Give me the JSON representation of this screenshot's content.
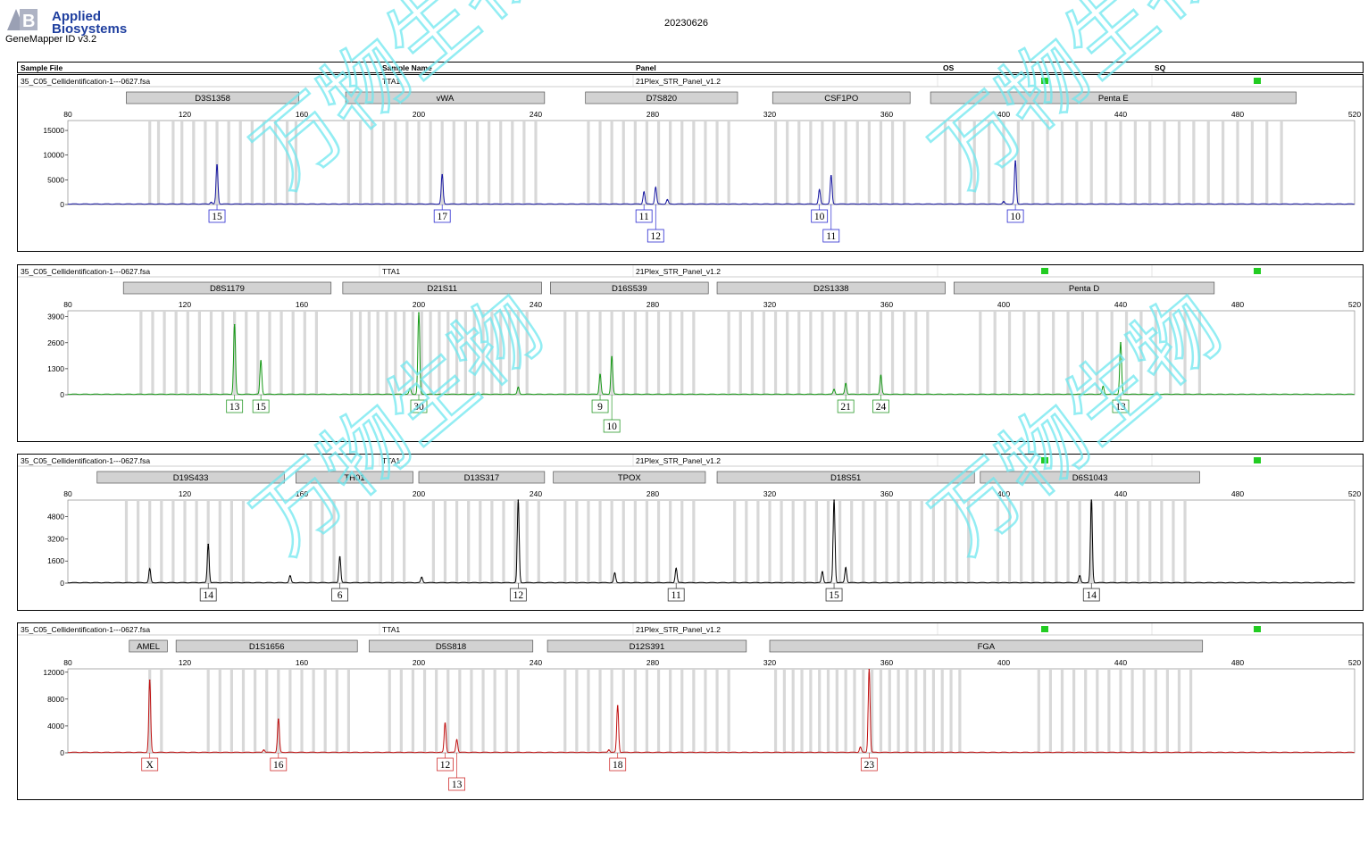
{
  "header": {
    "brand_line1": "Applied",
    "brand_line2": "Biosystems",
    "software": "GeneMapper ID v3.2",
    "date": "20230626"
  },
  "table": {
    "columns": [
      "Sample File",
      "Sample Name",
      "Panel",
      "OS",
      "SQ"
    ]
  },
  "watermark": "万物生物",
  "chart_data": [
    {
      "type": "line",
      "sample_file": "35_C05_Cellidentification-1---0627.fsa",
      "sample_name": "TTA1",
      "panel": "21Plex_STR_Panel_v1.2",
      "color": "#1515a0",
      "label_color": "#2a2ad0",
      "x_ticks": [
        80,
        120,
        160,
        200,
        240,
        280,
        320,
        360,
        400,
        440,
        480,
        520
      ],
      "xlim": [
        80,
        520
      ],
      "y_ticks": [
        0,
        5000,
        10000,
        15000
      ],
      "ylim": [
        0,
        17000
      ],
      "markers": [
        {
          "name": "D3S1358",
          "start": 100,
          "end": 159
        },
        {
          "name": "vWA",
          "start": 175,
          "end": 243
        },
        {
          "name": "D7S820",
          "start": 257,
          "end": 309
        },
        {
          "name": "CSF1PO",
          "start": 321,
          "end": 368
        },
        {
          "name": "Penta E",
          "start": 375,
          "end": 500
        }
      ],
      "peaks": [
        {
          "x": 131,
          "y": 8000
        },
        {
          "x": 208,
          "y": 6000
        },
        {
          "x": 277,
          "y": 2500
        },
        {
          "x": 281,
          "y": 3400
        },
        {
          "x": 285,
          "y": 900
        },
        {
          "x": 337,
          "y": 2900
        },
        {
          "x": 341,
          "y": 5800
        },
        {
          "x": 404,
          "y": 8800
        },
        {
          "x": 129,
          "y": 400
        },
        {
          "x": 400,
          "y": 500
        }
      ],
      "bins": [
        108,
        111,
        116,
        119,
        123,
        127,
        131,
        135,
        139,
        143,
        147,
        151,
        155,
        158,
        176,
        180,
        184,
        188,
        192,
        196,
        200,
        204,
        208,
        212,
        216,
        220,
        224,
        228,
        232,
        236,
        240,
        258,
        262,
        266,
        270,
        274,
        278,
        282,
        286,
        290,
        294,
        298,
        302,
        306,
        322,
        326,
        330,
        334,
        338,
        342,
        346,
        350,
        354,
        358,
        362,
        366,
        380,
        385,
        390,
        395,
        400,
        405,
        410,
        415,
        420,
        425,
        430,
        435,
        440,
        445,
        450,
        455,
        460,
        465,
        470,
        475,
        480,
        485,
        490,
        495
      ],
      "allele_calls": [
        {
          "x": 131,
          "label": "15",
          "row": 0
        },
        {
          "x": 208,
          "label": "17",
          "row": 0
        },
        {
          "x": 277,
          "label": "11",
          "row": 0
        },
        {
          "x": 281,
          "label": "12",
          "row": 1
        },
        {
          "x": 337,
          "label": "10",
          "row": 0
        },
        {
          "x": 341,
          "label": "11",
          "row": 1
        },
        {
          "x": 404,
          "label": "10",
          "row": 0
        }
      ]
    },
    {
      "type": "line",
      "sample_file": "35_C05_Cellidentification-1---0627.fsa",
      "sample_name": "TTA1",
      "panel": "21Plex_STR_Panel_v1.2",
      "color": "#179a17",
      "label_color": "#2a9a2a",
      "x_ticks": [
        80,
        120,
        160,
        200,
        240,
        280,
        320,
        360,
        400,
        440,
        480,
        520
      ],
      "xlim": [
        80,
        520
      ],
      "y_ticks": [
        0,
        1300,
        2600,
        3900
      ],
      "ylim": [
        0,
        4200
      ],
      "markers": [
        {
          "name": "D8S1179",
          "start": 99,
          "end": 170
        },
        {
          "name": "D21S11",
          "start": 174,
          "end": 242
        },
        {
          "name": "D16S539",
          "start": 245,
          "end": 299
        },
        {
          "name": "D2S1338",
          "start": 302,
          "end": 380
        },
        {
          "name": "Penta D",
          "start": 383,
          "end": 472
        }
      ],
      "peaks": [
        {
          "x": 137,
          "y": 3500
        },
        {
          "x": 146,
          "y": 1700
        },
        {
          "x": 200,
          "y": 4100
        },
        {
          "x": 262,
          "y": 1000
        },
        {
          "x": 266,
          "y": 1900
        },
        {
          "x": 346,
          "y": 550
        },
        {
          "x": 358,
          "y": 950
        },
        {
          "x": 440,
          "y": 2600
        },
        {
          "x": 434,
          "y": 400
        },
        {
          "x": 234,
          "y": 350
        },
        {
          "x": 197,
          "y": 300
        },
        {
          "x": 342,
          "y": 250
        }
      ],
      "bins": [
        105,
        109,
        113,
        117,
        121,
        125,
        129,
        133,
        137,
        141,
        145,
        149,
        153,
        157,
        161,
        165,
        177,
        180,
        183,
        186,
        189,
        192,
        195,
        198,
        201,
        204,
        207,
        210,
        213,
        216,
        219,
        222,
        225,
        228,
        231,
        234,
        237,
        250,
        254,
        258,
        262,
        266,
        270,
        274,
        278,
        282,
        286,
        290,
        294,
        306,
        310,
        314,
        318,
        322,
        326,
        330,
        334,
        338,
        342,
        346,
        350,
        354,
        358,
        362,
        366,
        370,
        374,
        392,
        397,
        402,
        407,
        412,
        417,
        422,
        427,
        432,
        437,
        442,
        447,
        452,
        457,
        462,
        467
      ],
      "allele_calls": [
        {
          "x": 137,
          "label": "13",
          "row": 0
        },
        {
          "x": 146,
          "label": "15",
          "row": 0
        },
        {
          "x": 200,
          "label": "30",
          "row": 0
        },
        {
          "x": 262,
          "label": "9",
          "row": 0
        },
        {
          "x": 266,
          "label": "10",
          "row": 1
        },
        {
          "x": 346,
          "label": "21",
          "row": 0
        },
        {
          "x": 358,
          "label": "24",
          "row": 0
        },
        {
          "x": 440,
          "label": "13",
          "row": 0
        }
      ]
    },
    {
      "type": "line",
      "sample_file": "35_C05_Cellidentification-1---0627.fsa",
      "sample_name": "TTA1",
      "panel": "21Plex_STR_Panel_v1.2",
      "color": "#000000",
      "label_color": "#333333",
      "x_ticks": [
        80,
        120,
        160,
        200,
        240,
        280,
        320,
        360,
        400,
        440,
        480,
        520
      ],
      "xlim": [
        80,
        520
      ],
      "y_ticks": [
        0,
        1600,
        3200,
        4800
      ],
      "ylim": [
        0,
        6000
      ],
      "markers": [
        {
          "name": "D19S433",
          "start": 90,
          "end": 154
        },
        {
          "name": "TH01",
          "start": 158,
          "end": 198
        },
        {
          "name": "D13S317",
          "start": 200,
          "end": 243
        },
        {
          "name": "TPOX",
          "start": 246,
          "end": 298
        },
        {
          "name": "D18S51",
          "start": 302,
          "end": 390
        },
        {
          "name": "D6S1043",
          "start": 392,
          "end": 467
        }
      ],
      "peaks": [
        {
          "x": 108,
          "y": 1000
        },
        {
          "x": 128,
          "y": 2800
        },
        {
          "x": 156,
          "y": 500
        },
        {
          "x": 173,
          "y": 1900
        },
        {
          "x": 201,
          "y": 400
        },
        {
          "x": 234,
          "y": 6000
        },
        {
          "x": 267,
          "y": 700
        },
        {
          "x": 288,
          "y": 1050
        },
        {
          "x": 338,
          "y": 800
        },
        {
          "x": 342,
          "y": 6000
        },
        {
          "x": 346,
          "y": 1100
        },
        {
          "x": 426,
          "y": 500
        },
        {
          "x": 430,
          "y": 6000
        }
      ],
      "bins": [
        100,
        104,
        108,
        112,
        116,
        120,
        124,
        128,
        132,
        136,
        140,
        163,
        167,
        171,
        175,
        179,
        183,
        187,
        191,
        195,
        205,
        209,
        213,
        217,
        221,
        225,
        229,
        233,
        237,
        241,
        250,
        254,
        258,
        262,
        266,
        270,
        274,
        278,
        282,
        286,
        290,
        294,
        308,
        312,
        316,
        320,
        324,
        328,
        332,
        336,
        340,
        344,
        348,
        352,
        356,
        360,
        364,
        368,
        372,
        376,
        380,
        384,
        388,
        398,
        402,
        406,
        410,
        414,
        418,
        422,
        426,
        430,
        434,
        438,
        442,
        446,
        450,
        454,
        458,
        462
      ],
      "allele_calls": [
        {
          "x": 128,
          "label": "14",
          "row": 0
        },
        {
          "x": 173,
          "label": "6",
          "row": 0
        },
        {
          "x": 234,
          "label": "12",
          "row": 0
        },
        {
          "x": 288,
          "label": "11",
          "row": 0
        },
        {
          "x": 342,
          "label": "15",
          "row": 0
        },
        {
          "x": 430,
          "label": "14",
          "row": 0
        }
      ]
    },
    {
      "type": "line",
      "sample_file": "35_C05_Cellidentification-1---0627.fsa",
      "sample_name": "TTA1",
      "panel": "21Plex_STR_Panel_v1.2",
      "color": "#c01010",
      "label_color": "#d03030",
      "x_ticks": [
        80,
        120,
        160,
        200,
        240,
        280,
        320,
        360,
        400,
        440,
        480,
        520
      ],
      "xlim": [
        80,
        520
      ],
      "y_ticks": [
        0,
        4000,
        8000,
        12000
      ],
      "ylim": [
        0,
        12500
      ],
      "markers": [
        {
          "name": "AMEL",
          "start": 101,
          "end": 114
        },
        {
          "name": "D1S1656",
          "start": 117,
          "end": 179
        },
        {
          "name": "D5S818",
          "start": 183,
          "end": 239
        },
        {
          "name": "D12S391",
          "start": 244,
          "end": 312
        },
        {
          "name": "FGA",
          "start": 320,
          "end": 468
        }
      ],
      "peaks": [
        {
          "x": 108,
          "y": 10800
        },
        {
          "x": 152,
          "y": 5000
        },
        {
          "x": 209,
          "y": 4400
        },
        {
          "x": 213,
          "y": 1900
        },
        {
          "x": 268,
          "y": 7000
        },
        {
          "x": 265,
          "y": 400
        },
        {
          "x": 354,
          "y": 12400
        },
        {
          "x": 351,
          "y": 800
        },
        {
          "x": 147,
          "y": 400
        }
      ],
      "bins": [
        108,
        112,
        128,
        132,
        136,
        140,
        144,
        148,
        152,
        156,
        160,
        164,
        168,
        172,
        176,
        190,
        194,
        198,
        202,
        206,
        210,
        214,
        218,
        222,
        226,
        230,
        234,
        250,
        254,
        258,
        262,
        266,
        270,
        274,
        278,
        282,
        286,
        290,
        294,
        298,
        302,
        306,
        322,
        325,
        328,
        331,
        334,
        337,
        340,
        343,
        346,
        349,
        352,
        355,
        358,
        361,
        364,
        367,
        370,
        373,
        376,
        379,
        382,
        385,
        412,
        416,
        420,
        424,
        428,
        432,
        436,
        440,
        444,
        448,
        452,
        456,
        460,
        464
      ],
      "allele_calls": [
        {
          "x": 108,
          "label": "X",
          "row": 0
        },
        {
          "x": 152,
          "label": "16",
          "row": 0
        },
        {
          "x": 209,
          "label": "12",
          "row": 0
        },
        {
          "x": 213,
          "label": "13",
          "row": 1
        },
        {
          "x": 268,
          "label": "18",
          "row": 0
        },
        {
          "x": 354,
          "label": "23",
          "row": 0
        }
      ]
    }
  ]
}
